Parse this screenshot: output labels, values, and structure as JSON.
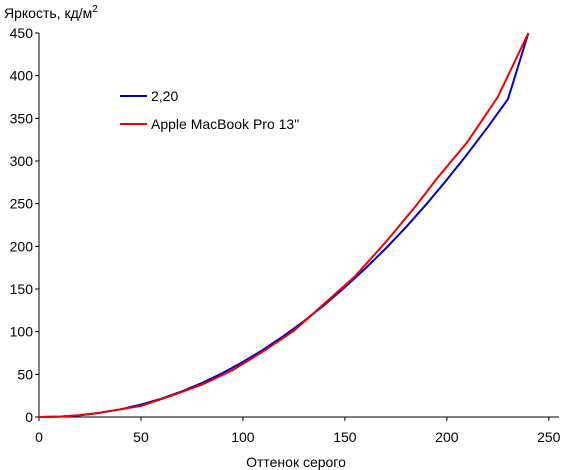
{
  "chart_data": {
    "type": "line",
    "ylabel": "Яркость, кд/м",
    "ylabel_superscript": "2",
    "xlabel": "Оттенок серого",
    "xlim": [
      0,
      255
    ],
    "ylim": [
      0,
      450
    ],
    "xticks": [
      "0",
      "50",
      "100",
      "150",
      "200",
      "250"
    ],
    "yticks": [
      "0",
      "50",
      "100",
      "150",
      "200",
      "250",
      "300",
      "350",
      "400",
      "450"
    ],
    "grid": false,
    "legend_position": "top-left",
    "series": [
      {
        "name": "2,20",
        "color": "#0000cc",
        "x": [
          0,
          10,
          20,
          30,
          40,
          50,
          60,
          70,
          80,
          90,
          100,
          110,
          120,
          130,
          140,
          150,
          160,
          170,
          180,
          190,
          200,
          210,
          220,
          230,
          240
        ],
        "y": [
          0,
          0.5,
          2,
          5,
          9,
          14.5,
          21.5,
          30,
          40,
          51.5,
          64.5,
          79,
          95,
          112.5,
          131.5,
          152,
          174,
          197.5,
          222.5,
          249.5,
          278,
          308,
          339.5,
          372.5,
          450
        ]
      },
      {
        "name": "Apple MacBook Pro 13\"",
        "color": "#ee0000",
        "x": [
          0,
          10,
          20,
          30,
          40,
          50,
          65,
          80,
          95,
          110,
          125,
          140,
          155,
          170,
          185,
          195,
          210,
          225,
          240
        ],
        "y": [
          0,
          0.5,
          2,
          5,
          9,
          13,
          25,
          38,
          55,
          77,
          101,
          133,
          165,
          205,
          248,
          279,
          322,
          375,
          450
        ]
      }
    ]
  }
}
